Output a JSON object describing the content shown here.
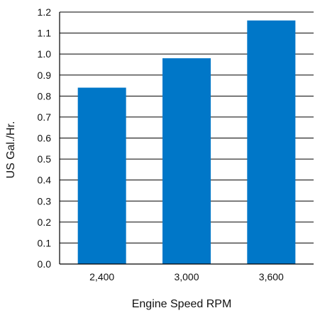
{
  "chart_data": {
    "type": "bar",
    "title": "",
    "xlabel": "Engine Speed RPM",
    "ylabel": "US Gal./Hr.",
    "categories": [
      "2,400",
      "3,000",
      "3,600"
    ],
    "values": [
      0.84,
      0.98,
      1.16
    ],
    "ylim": [
      0,
      1.2
    ],
    "yticks": [
      "0.0",
      "0.1",
      "0.2",
      "0.3",
      "0.4",
      "0.5",
      "0.6",
      "0.7",
      "0.8",
      "0.9",
      "1.0",
      "1.1",
      "1.2"
    ],
    "grid": true,
    "bar_color": "#0077c8",
    "legend": "none"
  }
}
